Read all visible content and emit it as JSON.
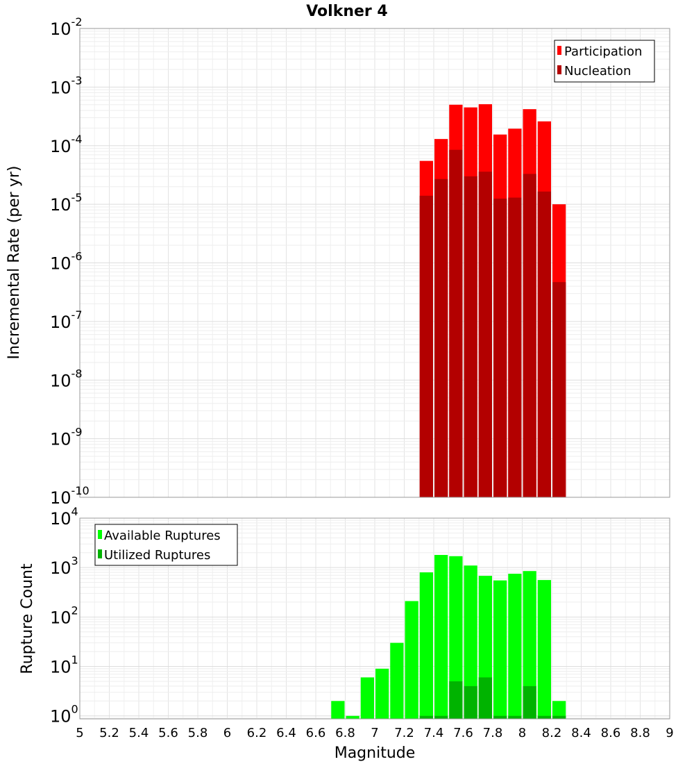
{
  "chart_data": [
    {
      "type": "bar",
      "title": "Volkner 4",
      "xlabel": "Magnitude",
      "ylabel": "Incremental Rate (per yr)",
      "yscale": "log",
      "ylim_exponents": [
        -10,
        -2
      ],
      "xlim": [
        5,
        9
      ],
      "legend_position": "top-right",
      "bin_width": 0.1,
      "series": [
        {
          "name": "Participation",
          "color": "#ff0000",
          "x": [
            7.35,
            7.45,
            7.55,
            7.65,
            7.75,
            7.85,
            7.95,
            8.05,
            8.15,
            8.25
          ],
          "values": [
            5.5e-05,
            0.00013,
            0.0005,
            0.00045,
            0.00051,
            0.000155,
            0.000195,
            0.00042,
            0.00026,
            1e-05
          ]
        },
        {
          "name": "Nucleation",
          "color": "#b30000",
          "x": [
            7.35,
            7.45,
            7.55,
            7.65,
            7.75,
            7.85,
            7.95,
            8.05,
            8.15,
            8.25
          ],
          "values": [
            1.4e-05,
            2.7e-05,
            8.5e-05,
            3e-05,
            3.6e-05,
            1.25e-05,
            1.3e-05,
            3.3e-05,
            1.65e-05,
            4.7e-07
          ]
        }
      ]
    },
    {
      "type": "bar",
      "title": "",
      "xlabel": "Magnitude",
      "ylabel": "Rupture Count",
      "yscale": "log",
      "ylim_exponents": [
        -0.06,
        4
      ],
      "xlim": [
        5,
        9
      ],
      "legend_position": "top-left",
      "bin_width": 0.1,
      "series": [
        {
          "name": "Available Ruptures",
          "color": "#00ff00",
          "x": [
            6.75,
            6.85,
            6.95,
            7.05,
            7.15,
            7.25,
            7.35,
            7.45,
            7.55,
            7.65,
            7.75,
            7.85,
            7.95,
            8.05,
            8.15,
            8.25
          ],
          "values": [
            2,
            1,
            6,
            9,
            30,
            210,
            800,
            1800,
            1700,
            1100,
            680,
            550,
            750,
            850,
            560,
            2
          ]
        },
        {
          "name": "Utilized Ruptures",
          "color": "#00b300",
          "x": [
            7.35,
            7.45,
            7.55,
            7.65,
            7.75,
            7.85,
            7.95,
            8.05,
            8.15,
            8.25
          ],
          "values": [
            1,
            1,
            5,
            4,
            6,
            1,
            1,
            4,
            1,
            1
          ]
        }
      ]
    }
  ],
  "x_ticks": [
    "5",
    "5.2",
    "5.4",
    "5.6",
    "5.8",
    "6",
    "6.2",
    "6.4",
    "6.6",
    "6.8",
    "7",
    "7.2",
    "7.4",
    "7.6",
    "7.8",
    "8",
    "8.2",
    "8.4",
    "8.6",
    "8.8",
    "9"
  ],
  "top_y_ticks": {
    "base": "10",
    "exponents": [
      "-2",
      "-3",
      "-4",
      "-5",
      "-6",
      "-7",
      "-8",
      "-9",
      "-10"
    ]
  },
  "bottom_y_ticks": {
    "base": "10",
    "exponents": [
      "4",
      "3",
      "2",
      "1",
      "0"
    ]
  }
}
